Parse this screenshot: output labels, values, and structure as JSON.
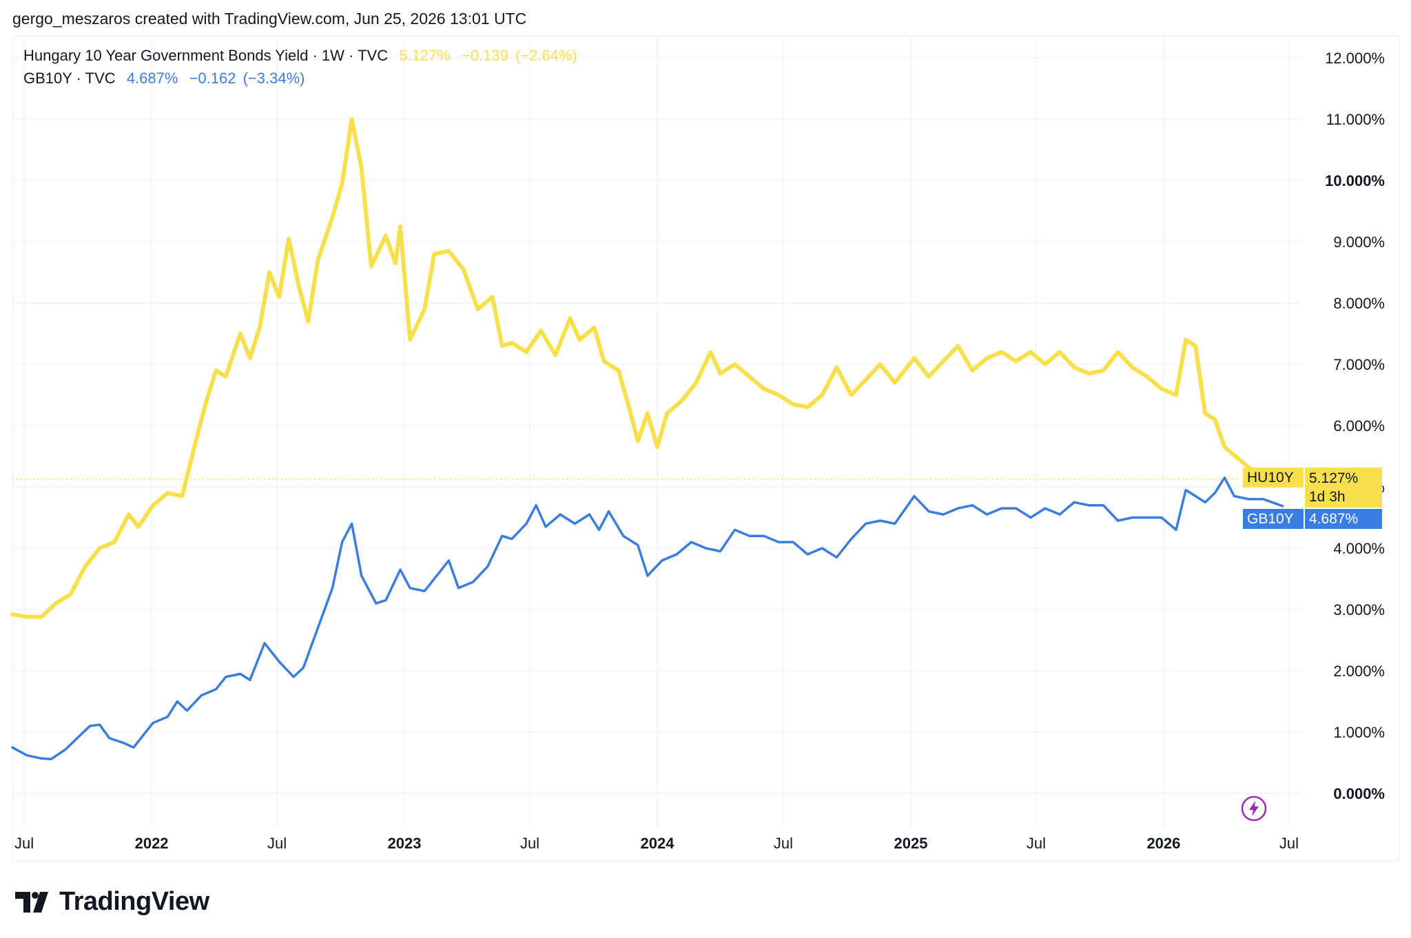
{
  "header": {
    "caption": "gergo_meszaros created with TradingView.com, Jun 25, 2026 13:01 UTC"
  },
  "legend": {
    "hu": {
      "name": "Hungary 10 Year Government Bonds Yield · 1W · TVC",
      "value": "5.127%",
      "change": "−0.139",
      "change_pct": "(−2.64%)"
    },
    "gb": {
      "name": "GB10Y · TVC",
      "value": "4.687%",
      "change": "−0.162",
      "change_pct": "(−3.34%)"
    }
  },
  "tags": {
    "hu": {
      "symbol": "HU10Y",
      "value": "5.127%",
      "countdown": "1d 3h"
    },
    "gb": {
      "symbol": "GB10Y",
      "value": "4.687%"
    }
  },
  "colors": {
    "hu": "#f7e04b",
    "gb": "#3a7de0",
    "grid": "#f0f3fa",
    "lightning": "#9c27b0"
  },
  "logo": {
    "text": "TradingView"
  },
  "chart_data": {
    "type": "line",
    "x_unit": "date",
    "y_unit": "%",
    "ylim": [
      -0.5,
      12.5
    ],
    "xlim": [
      "2021-06-14",
      "2026-07-20"
    ],
    "y_ticks": [
      "0.000%",
      "1.000%",
      "2.000%",
      "3.000%",
      "4.000%",
      "5.000%",
      "6.000%",
      "7.000%",
      "8.000%",
      "9.000%",
      "10.000%",
      "11.000%",
      "12.000%"
    ],
    "y_tick_values": [
      0,
      1,
      2,
      3,
      4,
      5,
      6,
      7,
      8,
      9,
      10,
      11,
      12
    ],
    "y_ticks_bold": [
      "10.000%",
      "0.000%"
    ],
    "x_ticks": [
      {
        "label": "Jul",
        "date": "2021-07-01",
        "bold": false
      },
      {
        "label": "2022",
        "date": "2022-01-01",
        "bold": true
      },
      {
        "label": "Jul",
        "date": "2022-07-01",
        "bold": false
      },
      {
        "label": "2023",
        "date": "2023-01-01",
        "bold": true
      },
      {
        "label": "Jul",
        "date": "2023-07-01",
        "bold": false
      },
      {
        "label": "2024",
        "date": "2024-01-01",
        "bold": true
      },
      {
        "label": "Jul",
        "date": "2024-07-01",
        "bold": false
      },
      {
        "label": "2025",
        "date": "2025-01-01",
        "bold": true
      },
      {
        "label": "Jul",
        "date": "2025-07-01",
        "bold": false
      },
      {
        "label": "2026",
        "date": "2026-01-01",
        "bold": true
      },
      {
        "label": "Jul",
        "date": "2026-07-01",
        "bold": false
      }
    ],
    "grid": true,
    "last_price_line": 5.127,
    "series": [
      {
        "symbol": "HU10Y",
        "color": "#f7e04b",
        "points": [
          [
            "2021-06-14",
            2.92
          ],
          [
            "2021-07-05",
            2.88
          ],
          [
            "2021-07-26",
            2.88
          ],
          [
            "2021-08-16",
            3.1
          ],
          [
            "2021-09-06",
            3.25
          ],
          [
            "2021-09-27",
            3.7
          ],
          [
            "2021-10-18",
            4.0
          ],
          [
            "2021-11-08",
            4.1
          ],
          [
            "2021-11-29",
            4.55
          ],
          [
            "2021-12-13",
            4.35
          ],
          [
            "2022-01-03",
            4.7
          ],
          [
            "2022-01-24",
            4.9
          ],
          [
            "2022-02-14",
            4.85
          ],
          [
            "2022-03-07",
            5.8
          ],
          [
            "2022-03-21",
            6.4
          ],
          [
            "2022-04-04",
            6.9
          ],
          [
            "2022-04-18",
            6.8
          ],
          [
            "2022-05-09",
            7.5
          ],
          [
            "2022-05-23",
            7.1
          ],
          [
            "2022-06-06",
            7.6
          ],
          [
            "2022-06-20",
            8.5
          ],
          [
            "2022-07-04",
            8.1
          ],
          [
            "2022-07-18",
            9.05
          ],
          [
            "2022-08-01",
            8.3
          ],
          [
            "2022-08-15",
            7.7
          ],
          [
            "2022-08-29",
            8.7
          ],
          [
            "2022-09-19",
            9.4
          ],
          [
            "2022-10-03",
            9.95
          ],
          [
            "2022-10-17",
            11.0
          ],
          [
            "2022-10-31",
            10.2
          ],
          [
            "2022-11-14",
            8.6
          ],
          [
            "2022-12-05",
            9.1
          ],
          [
            "2022-12-19",
            8.65
          ],
          [
            "2022-12-26",
            9.25
          ],
          [
            "2023-01-09",
            7.4
          ],
          [
            "2023-01-30",
            7.9
          ],
          [
            "2023-02-13",
            8.8
          ],
          [
            "2023-03-06",
            8.85
          ],
          [
            "2023-03-27",
            8.55
          ],
          [
            "2023-04-17",
            7.9
          ],
          [
            "2023-05-08",
            8.1
          ],
          [
            "2023-05-22",
            7.3
          ],
          [
            "2023-06-05",
            7.35
          ],
          [
            "2023-06-26",
            7.2
          ],
          [
            "2023-07-17",
            7.55
          ],
          [
            "2023-08-07",
            7.15
          ],
          [
            "2023-08-28",
            7.75
          ],
          [
            "2023-09-11",
            7.4
          ],
          [
            "2023-10-02",
            7.6
          ],
          [
            "2023-10-16",
            7.05
          ],
          [
            "2023-11-06",
            6.9
          ],
          [
            "2023-11-20",
            6.35
          ],
          [
            "2023-12-04",
            5.75
          ],
          [
            "2023-12-18",
            6.2
          ],
          [
            "2024-01-01",
            5.65
          ],
          [
            "2024-01-15",
            6.2
          ],
          [
            "2024-02-05",
            6.4
          ],
          [
            "2024-02-26",
            6.7
          ],
          [
            "2024-03-18",
            7.2
          ],
          [
            "2024-04-01",
            6.85
          ],
          [
            "2024-04-22",
            7.0
          ],
          [
            "2024-05-13",
            6.8
          ],
          [
            "2024-06-03",
            6.6
          ],
          [
            "2024-06-24",
            6.5
          ],
          [
            "2024-07-15",
            6.35
          ],
          [
            "2024-08-05",
            6.3
          ],
          [
            "2024-08-26",
            6.5
          ],
          [
            "2024-09-16",
            6.95
          ],
          [
            "2024-10-07",
            6.5
          ],
          [
            "2024-10-28",
            6.75
          ],
          [
            "2024-11-18",
            7.0
          ],
          [
            "2024-12-09",
            6.7
          ],
          [
            "2025-01-06",
            7.1
          ],
          [
            "2025-01-27",
            6.8
          ],
          [
            "2025-02-17",
            7.05
          ],
          [
            "2025-03-10",
            7.3
          ],
          [
            "2025-03-31",
            6.9
          ],
          [
            "2025-04-21",
            7.1
          ],
          [
            "2025-05-12",
            7.2
          ],
          [
            "2025-06-02",
            7.05
          ],
          [
            "2025-06-23",
            7.2
          ],
          [
            "2025-07-14",
            7.0
          ],
          [
            "2025-08-04",
            7.2
          ],
          [
            "2025-08-25",
            6.95
          ],
          [
            "2025-09-15",
            6.85
          ],
          [
            "2025-10-06",
            6.9
          ],
          [
            "2025-10-27",
            7.2
          ],
          [
            "2025-11-17",
            6.95
          ],
          [
            "2025-12-08",
            6.8
          ],
          [
            "2025-12-29",
            6.6
          ],
          [
            "2026-01-19",
            6.5
          ],
          [
            "2026-02-02",
            7.4
          ],
          [
            "2026-02-16",
            7.3
          ],
          [
            "2026-03-02",
            6.2
          ],
          [
            "2026-03-16",
            6.1
          ],
          [
            "2026-03-30",
            5.65
          ],
          [
            "2026-04-20",
            5.45
          ],
          [
            "2026-05-11",
            5.25
          ],
          [
            "2026-05-25",
            5.2
          ],
          [
            "2026-06-22",
            5.127
          ]
        ]
      },
      {
        "symbol": "GB10Y",
        "color": "#3a7de0",
        "points": [
          [
            "2021-06-14",
            0.75
          ],
          [
            "2021-07-05",
            0.62
          ],
          [
            "2021-07-26",
            0.57
          ],
          [
            "2021-08-09",
            0.56
          ],
          [
            "2021-08-30",
            0.72
          ],
          [
            "2021-09-20",
            0.95
          ],
          [
            "2021-10-04",
            1.1
          ],
          [
            "2021-10-18",
            1.12
          ],
          [
            "2021-11-01",
            0.9
          ],
          [
            "2021-11-22",
            0.82
          ],
          [
            "2021-12-06",
            0.75
          ],
          [
            "2021-12-20",
            0.95
          ],
          [
            "2022-01-03",
            1.15
          ],
          [
            "2022-01-24",
            1.25
          ],
          [
            "2022-02-07",
            1.5
          ],
          [
            "2022-02-21",
            1.35
          ],
          [
            "2022-03-14",
            1.6
          ],
          [
            "2022-04-04",
            1.7
          ],
          [
            "2022-04-18",
            1.9
          ],
          [
            "2022-05-09",
            1.95
          ],
          [
            "2022-05-23",
            1.85
          ],
          [
            "2022-06-13",
            2.45
          ],
          [
            "2022-07-04",
            2.15
          ],
          [
            "2022-07-25",
            1.9
          ],
          [
            "2022-08-08",
            2.05
          ],
          [
            "2022-08-29",
            2.7
          ],
          [
            "2022-09-19",
            3.35
          ],
          [
            "2022-10-03",
            4.1
          ],
          [
            "2022-10-17",
            4.4
          ],
          [
            "2022-10-31",
            3.55
          ],
          [
            "2022-11-21",
            3.1
          ],
          [
            "2022-12-05",
            3.15
          ],
          [
            "2022-12-26",
            3.65
          ],
          [
            "2023-01-09",
            3.35
          ],
          [
            "2023-01-30",
            3.3
          ],
          [
            "2023-02-13",
            3.5
          ],
          [
            "2023-03-06",
            3.8
          ],
          [
            "2023-03-20",
            3.35
          ],
          [
            "2023-04-10",
            3.45
          ],
          [
            "2023-05-01",
            3.7
          ],
          [
            "2023-05-22",
            4.2
          ],
          [
            "2023-06-05",
            4.15
          ],
          [
            "2023-06-26",
            4.4
          ],
          [
            "2023-07-10",
            4.7
          ],
          [
            "2023-07-24",
            4.35
          ],
          [
            "2023-08-14",
            4.55
          ],
          [
            "2023-09-04",
            4.4
          ],
          [
            "2023-09-25",
            4.55
          ],
          [
            "2023-10-09",
            4.3
          ],
          [
            "2023-10-23",
            4.6
          ],
          [
            "2023-11-13",
            4.2
          ],
          [
            "2023-12-04",
            4.05
          ],
          [
            "2023-12-18",
            3.55
          ],
          [
            "2024-01-08",
            3.8
          ],
          [
            "2024-01-29",
            3.9
          ],
          [
            "2024-02-19",
            4.1
          ],
          [
            "2024-03-11",
            4.0
          ],
          [
            "2024-04-01",
            3.95
          ],
          [
            "2024-04-22",
            4.3
          ],
          [
            "2024-05-13",
            4.2
          ],
          [
            "2024-06-03",
            4.2
          ],
          [
            "2024-06-24",
            4.1
          ],
          [
            "2024-07-15",
            4.1
          ],
          [
            "2024-08-05",
            3.9
          ],
          [
            "2024-08-26",
            4.0
          ],
          [
            "2024-09-16",
            3.85
          ],
          [
            "2024-10-07",
            4.15
          ],
          [
            "2024-10-28",
            4.4
          ],
          [
            "2024-11-18",
            4.45
          ],
          [
            "2024-12-09",
            4.4
          ],
          [
            "2025-01-06",
            4.85
          ],
          [
            "2025-01-27",
            4.6
          ],
          [
            "2025-02-17",
            4.55
          ],
          [
            "2025-03-10",
            4.65
          ],
          [
            "2025-03-31",
            4.7
          ],
          [
            "2025-04-21",
            4.55
          ],
          [
            "2025-05-12",
            4.65
          ],
          [
            "2025-06-02",
            4.65
          ],
          [
            "2025-06-23",
            4.5
          ],
          [
            "2025-07-14",
            4.65
          ],
          [
            "2025-08-04",
            4.55
          ],
          [
            "2025-08-25",
            4.75
          ],
          [
            "2025-09-15",
            4.7
          ],
          [
            "2025-10-06",
            4.7
          ],
          [
            "2025-10-27",
            4.45
          ],
          [
            "2025-11-17",
            4.5
          ],
          [
            "2025-12-08",
            4.5
          ],
          [
            "2025-12-29",
            4.5
          ],
          [
            "2026-01-19",
            4.3
          ],
          [
            "2026-02-02",
            4.95
          ],
          [
            "2026-02-16",
            4.85
          ],
          [
            "2026-03-02",
            4.75
          ],
          [
            "2026-03-16",
            4.9
          ],
          [
            "2026-03-30",
            5.15
          ],
          [
            "2026-04-13",
            4.85
          ],
          [
            "2026-05-04",
            4.8
          ],
          [
            "2026-05-25",
            4.8
          ],
          [
            "2026-06-22",
            4.687
          ]
        ]
      }
    ]
  }
}
